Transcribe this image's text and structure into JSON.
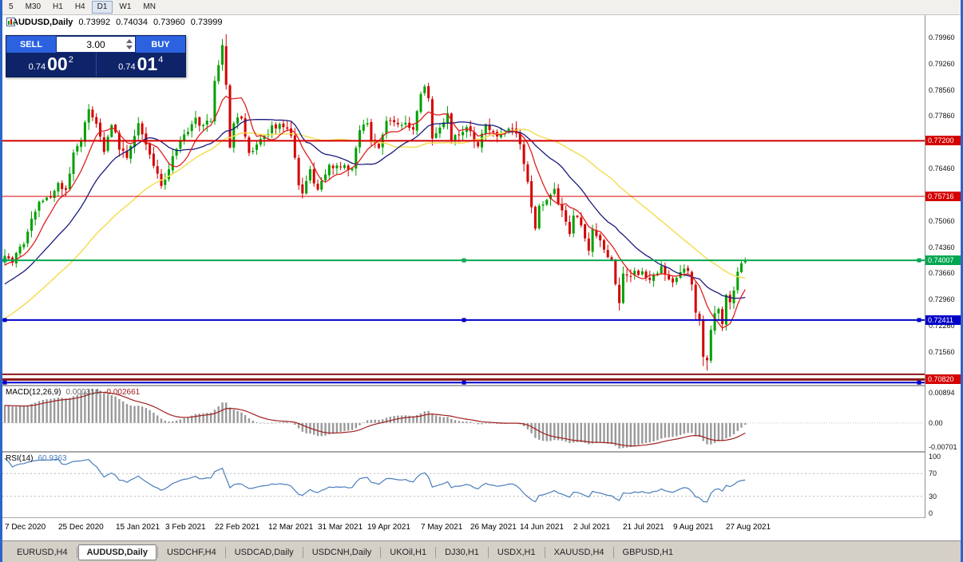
{
  "window": {
    "frame_color": "#2f64c8"
  },
  "toolbar": {
    "timeframes": [
      "5",
      "M30",
      "H1",
      "H4",
      "D1",
      "W1",
      "MN"
    ],
    "active": "D1"
  },
  "chart_header": {
    "symbol": "AUDUSD,Daily",
    "open": "0.73992",
    "high": "0.74034",
    "low": "0.73960",
    "close": "0.73999"
  },
  "trade_panel": {
    "sell_label": "SELL",
    "buy_label": "BUY",
    "volume": "3.00",
    "sell_price": {
      "prefix": "0.74",
      "big": "00",
      "sup": "2"
    },
    "buy_price": {
      "prefix": "0.74",
      "big": "01",
      "sup": "4"
    }
  },
  "price_axis": {
    "ticks": [
      "0.79960",
      "0.79260",
      "0.78560",
      "0.77860",
      "0.76460",
      "0.75060",
      "0.74360",
      "0.73660",
      "0.72960",
      "0.72260",
      "0.71560"
    ]
  },
  "hlines": [
    {
      "price": 0.772,
      "label": "0.77200",
      "color": "#d40000",
      "label_bg": "#d40000",
      "width": 2,
      "handles": false
    },
    {
      "price": 0.75716,
      "label": "0.75716",
      "color": "#d40000",
      "label_bg": "#d40000",
      "width": 1,
      "handles": false
    },
    {
      "price": 0.74007,
      "label": "0.74007",
      "color": "#00a651",
      "label_bg": "#00a651",
      "width": 2,
      "handles": true
    },
    {
      "price": 0.72411,
      "label": "0.72411",
      "color": "#0000c8",
      "label_bg": "#0000c8",
      "width": 2,
      "handles": true
    },
    {
      "price": 0.7096,
      "label": "",
      "color": "#8b1616",
      "width": 2,
      "handles": false
    },
    {
      "price": 0.7082,
      "label": "0.70820",
      "color": "#8b1616",
      "label_bg": "#d40000",
      "width": 3,
      "handles": false
    },
    {
      "price": 0.7074,
      "label": "",
      "color": "#0000c8",
      "width": 2,
      "handles": true
    }
  ],
  "chart_data": {
    "type": "candlestick",
    "symbol": "AUDUSD",
    "timeframe": "Daily",
    "bars": 195,
    "warmup_bars": 50,
    "warmup_start_price": 0.703,
    "seed": 1337,
    "price_min": 0.7068,
    "price_max": 0.8058,
    "up_color": "#00a000",
    "down_color": "#d40000",
    "moving_averages": [
      {
        "period": 45,
        "color": "#f5dd55",
        "width": 1.5
      },
      {
        "period": 21,
        "color": "#1a1a7e",
        "width": 1.3
      },
      {
        "period": 8,
        "color": "#e02020",
        "width": 1.3
      }
    ],
    "close_waypoints": [
      [
        0,
        0.7415
      ],
      [
        2,
        0.74
      ],
      [
        5,
        0.745
      ],
      [
        9,
        0.756
      ],
      [
        12,
        0.7575
      ],
      [
        14,
        0.76
      ],
      [
        16,
        0.7585
      ],
      [
        18,
        0.7694
      ],
      [
        20,
        0.7726
      ],
      [
        22,
        0.78
      ],
      [
        24,
        0.7758
      ],
      [
        26,
        0.769
      ],
      [
        28,
        0.777
      ],
      [
        30,
        0.77
      ],
      [
        32,
        0.768
      ],
      [
        35,
        0.7767
      ],
      [
        37,
        0.7715
      ],
      [
        39,
        0.765
      ],
      [
        41,
        0.7601
      ],
      [
        42,
        0.7615
      ],
      [
        44,
        0.7676
      ],
      [
        47,
        0.7733
      ],
      [
        50,
        0.7777
      ],
      [
        52,
        0.7757
      ],
      [
        54,
        0.7775
      ],
      [
        55,
        0.788
      ],
      [
        56,
        0.793
      ],
      [
        57,
        0.7969
      ],
      [
        58,
        0.787
      ],
      [
        59,
        0.7706
      ],
      [
        60,
        0.7772
      ],
      [
        62,
        0.7779
      ],
      [
        64,
        0.7685
      ],
      [
        67,
        0.7728
      ],
      [
        70,
        0.7755
      ],
      [
        73,
        0.7763
      ],
      [
        75,
        0.7735
      ],
      [
        77,
        0.76
      ],
      [
        78,
        0.7585
      ],
      [
        80,
        0.7638
      ],
      [
        82,
        0.7588
      ],
      [
        83,
        0.761
      ],
      [
        85,
        0.765
      ],
      [
        88,
        0.7655
      ],
      [
        91,
        0.7645
      ],
      [
        93,
        0.7755
      ],
      [
        95,
        0.7765
      ],
      [
        96,
        0.772
      ],
      [
        98,
        0.7705
      ],
      [
        100,
        0.778
      ],
      [
        103,
        0.7768
      ],
      [
        105,
        0.7762
      ],
      [
        107,
        0.7745
      ],
      [
        109,
        0.7843
      ],
      [
        110,
        0.7862
      ],
      [
        111,
        0.7837
      ],
      [
        112,
        0.7727
      ],
      [
        115,
        0.7763
      ],
      [
        116,
        0.7788
      ],
      [
        117,
        0.7723
      ],
      [
        121,
        0.775
      ],
      [
        122,
        0.7739
      ],
      [
        124,
        0.7706
      ],
      [
        126,
        0.7758
      ],
      [
        129,
        0.7739
      ],
      [
        131,
        0.7737
      ],
      [
        133,
        0.7755
      ],
      [
        135,
        0.771
      ],
      [
        137,
        0.761
      ],
      [
        138,
        0.755
      ],
      [
        139,
        0.7478
      ],
      [
        140,
        0.7543
      ],
      [
        144,
        0.759
      ],
      [
        147,
        0.7497
      ],
      [
        148,
        0.7466
      ],
      [
        149,
        0.7525
      ],
      [
        151,
        0.7494
      ],
      [
        153,
        0.7432
      ],
      [
        154,
        0.7487
      ],
      [
        156,
        0.7446
      ],
      [
        159,
        0.74
      ],
      [
        160,
        0.7335
      ],
      [
        161,
        0.729
      ],
      [
        162,
        0.7359
      ],
      [
        164,
        0.7365
      ],
      [
        167,
        0.7369
      ],
      [
        169,
        0.7342
      ],
      [
        170,
        0.7362
      ],
      [
        172,
        0.738
      ],
      [
        174,
        0.7355
      ],
      [
        175,
        0.7336
      ],
      [
        177,
        0.7371
      ],
      [
        179,
        0.737
      ],
      [
        180,
        0.7336
      ],
      [
        181,
        0.7263
      ],
      [
        182,
        0.7234
      ],
      [
        183,
        0.714
      ],
      [
        184,
        0.713
      ],
      [
        185,
        0.7215
      ],
      [
        186,
        0.7255
      ],
      [
        187,
        0.7273
      ],
      [
        188,
        0.7232
      ],
      [
        189,
        0.731
      ],
      [
        190,
        0.7294
      ],
      [
        191,
        0.7316
      ],
      [
        192,
        0.7372
      ],
      [
        193,
        0.74
      ],
      [
        194,
        0.73999
      ]
    ],
    "spikes": [
      {
        "bar": 57,
        "high": 0.7992
      },
      {
        "bar": 58,
        "high": 0.8005
      },
      {
        "bar": 183,
        "low": 0.7118
      },
      {
        "bar": 184,
        "low": 0.7106
      }
    ]
  },
  "indicators": {
    "macd": {
      "label": "MACD(12,26,9)",
      "value1": "0.000314",
      "value2": "-0.002661",
      "axis_labels": [
        "0.00894",
        "0.00",
        "-0.00701"
      ],
      "range": [
        -0.0082,
        0.0107
      ],
      "histogram_color": "#999999",
      "signal_color": "#a01f1f"
    },
    "rsi": {
      "label": "RSI(14)",
      "value": "60.9363",
      "axis_labels": [
        "100",
        "70",
        "30",
        "0"
      ],
      "levels": [
        70,
        30
      ],
      "line_color": "#4a7ebb"
    }
  },
  "date_axis": {
    "labels": [
      {
        "bar": 0,
        "text": "7 Dec 2020"
      },
      {
        "bar": 14,
        "text": "25 Dec 2020"
      },
      {
        "bar": 29,
        "text": "15 Jan 2021"
      },
      {
        "bar": 42,
        "text": "3 Feb 2021"
      },
      {
        "bar": 55,
        "text": "22 Feb 2021"
      },
      {
        "bar": 69,
        "text": "12 Mar 2021"
      },
      {
        "bar": 82,
        "text": "31 Mar 2021"
      },
      {
        "bar": 95,
        "text": "19 Apr 2021"
      },
      {
        "bar": 109,
        "text": "7 May 2021"
      },
      {
        "bar": 122,
        "text": "26 May 2021"
      },
      {
        "bar": 135,
        "text": "14 Jun 2021"
      },
      {
        "bar": 149,
        "text": "2 Jul 2021"
      },
      {
        "bar": 162,
        "text": "21 Jul 2021"
      },
      {
        "bar": 175,
        "text": "9 Aug 2021"
      },
      {
        "bar": 189,
        "text": "27 Aug 2021"
      }
    ]
  },
  "tabs": {
    "active_index": 1,
    "items": [
      "EURUSD,H4",
      "AUDUSD,Daily",
      "USDCHF,H4",
      "USDCAD,Daily",
      "USDCNH,Daily",
      "UKOil,H1",
      "DJ30,H1",
      "USDX,H1",
      "XAUUSD,H4",
      "GBPUSD,H1"
    ]
  }
}
